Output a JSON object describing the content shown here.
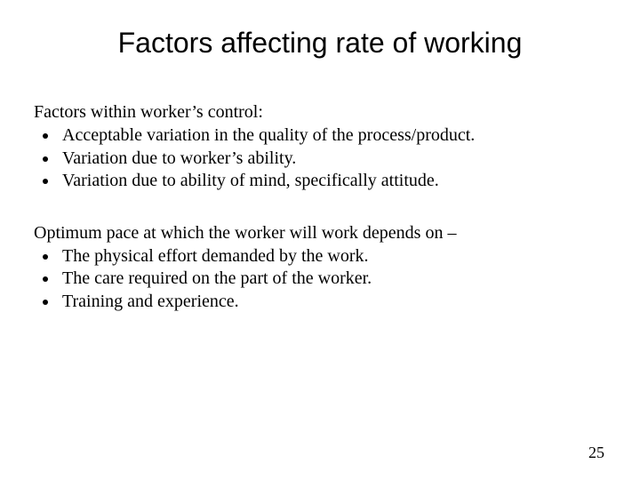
{
  "slide": {
    "title": "Factors affecting rate of working",
    "section1": {
      "intro": "Factors within worker’s control:",
      "items": [
        "Acceptable variation in the quality of the process/product.",
        "Variation due to worker’s ability.",
        "Variation due to ability of mind, specifically attitude."
      ]
    },
    "section2": {
      "intro": "Optimum pace at which the worker will work depends on –",
      "items": [
        "The physical effort demanded by the work.",
        "The care required on the part of the worker.",
        "Training and experience."
      ]
    },
    "page_number": "25"
  },
  "style": {
    "background_color": "#ffffff",
    "text_color": "#000000",
    "title_font_family": "Arial",
    "title_font_size_pt": 32,
    "body_font_family": "Times New Roman",
    "body_font_size_pt": 20,
    "page_number_font_size_pt": 18
  }
}
